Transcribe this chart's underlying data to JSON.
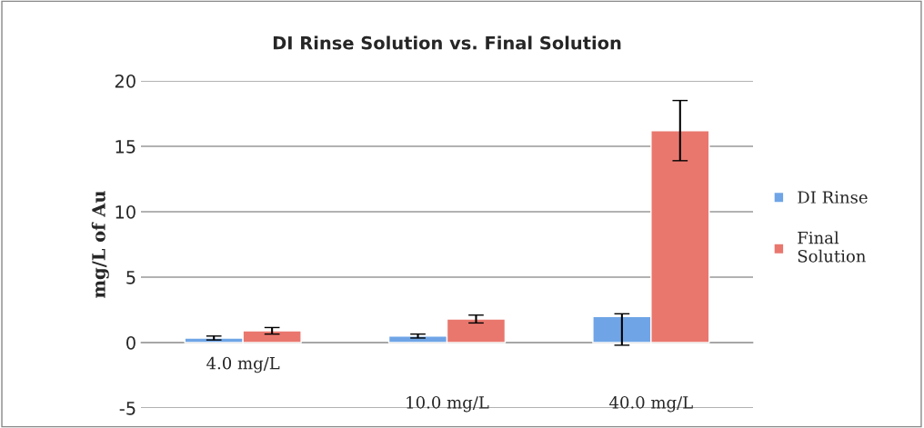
{
  "chart_data": {
    "type": "bar",
    "title": "DI Rinse Solution vs. Final Solution",
    "ylabel": "mg/L of Au",
    "categories": [
      "4.0 mg/L",
      "10.0 mg/L",
      "40.0 mg/L"
    ],
    "series": [
      {
        "name": "DI Rinse",
        "color": "#6fa5e6",
        "values": [
          0.35,
          0.5,
          2.0
        ],
        "errors": [
          0.15,
          0.15,
          [
            -0.2,
            2.2
          ]
        ]
      },
      {
        "name": "Final\nSolution",
        "color": "#e9776e",
        "values": [
          0.9,
          1.8,
          16.2
        ],
        "errors": [
          0.25,
          0.3,
          2.3
        ]
      }
    ],
    "ylim": [
      -5,
      20
    ],
    "yticks": [
      -5,
      0,
      5,
      10,
      15,
      20
    ],
    "grid": "y",
    "legend": "right"
  }
}
